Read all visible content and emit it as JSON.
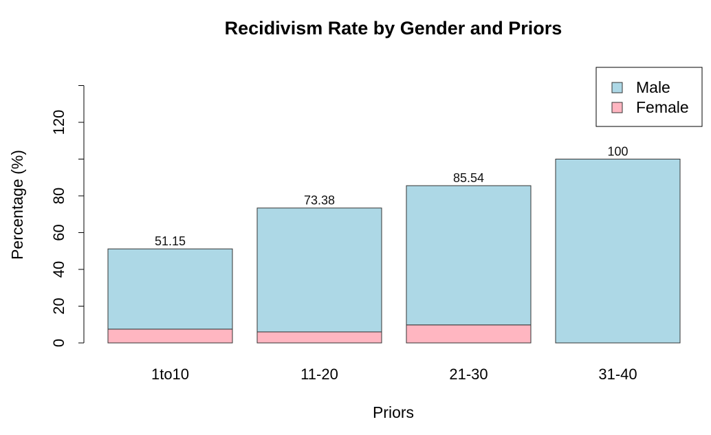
{
  "chart_data": {
    "type": "bar",
    "stacked": true,
    "title": "Recidivism Rate by Gender and Priors",
    "xlabel": "Priors",
    "ylabel": "Percentage (%)",
    "categories": [
      "1to10",
      "11-20",
      "21-30",
      "31-40"
    ],
    "series": [
      {
        "name": "Female",
        "color": "#FFB6C1",
        "values": [
          7.5,
          6.0,
          9.8,
          0
        ]
      },
      {
        "name": "Male",
        "color": "#ADD8E6",
        "values": [
          43.65,
          67.38,
          75.74,
          100
        ]
      }
    ],
    "totals": [
      51.15,
      73.38,
      85.54,
      100
    ],
    "total_labels": [
      "51.15",
      "73.38",
      "85.54",
      "100"
    ],
    "ylim": [
      0,
      140
    ],
    "yticks": [
      0,
      20,
      40,
      60,
      80,
      120
    ],
    "grid": false,
    "legend": {
      "position": "top-right",
      "entries": [
        {
          "name": "Male",
          "color": "#ADD8E6"
        },
        {
          "name": "Female",
          "color": "#FFB6C1"
        }
      ]
    }
  }
}
